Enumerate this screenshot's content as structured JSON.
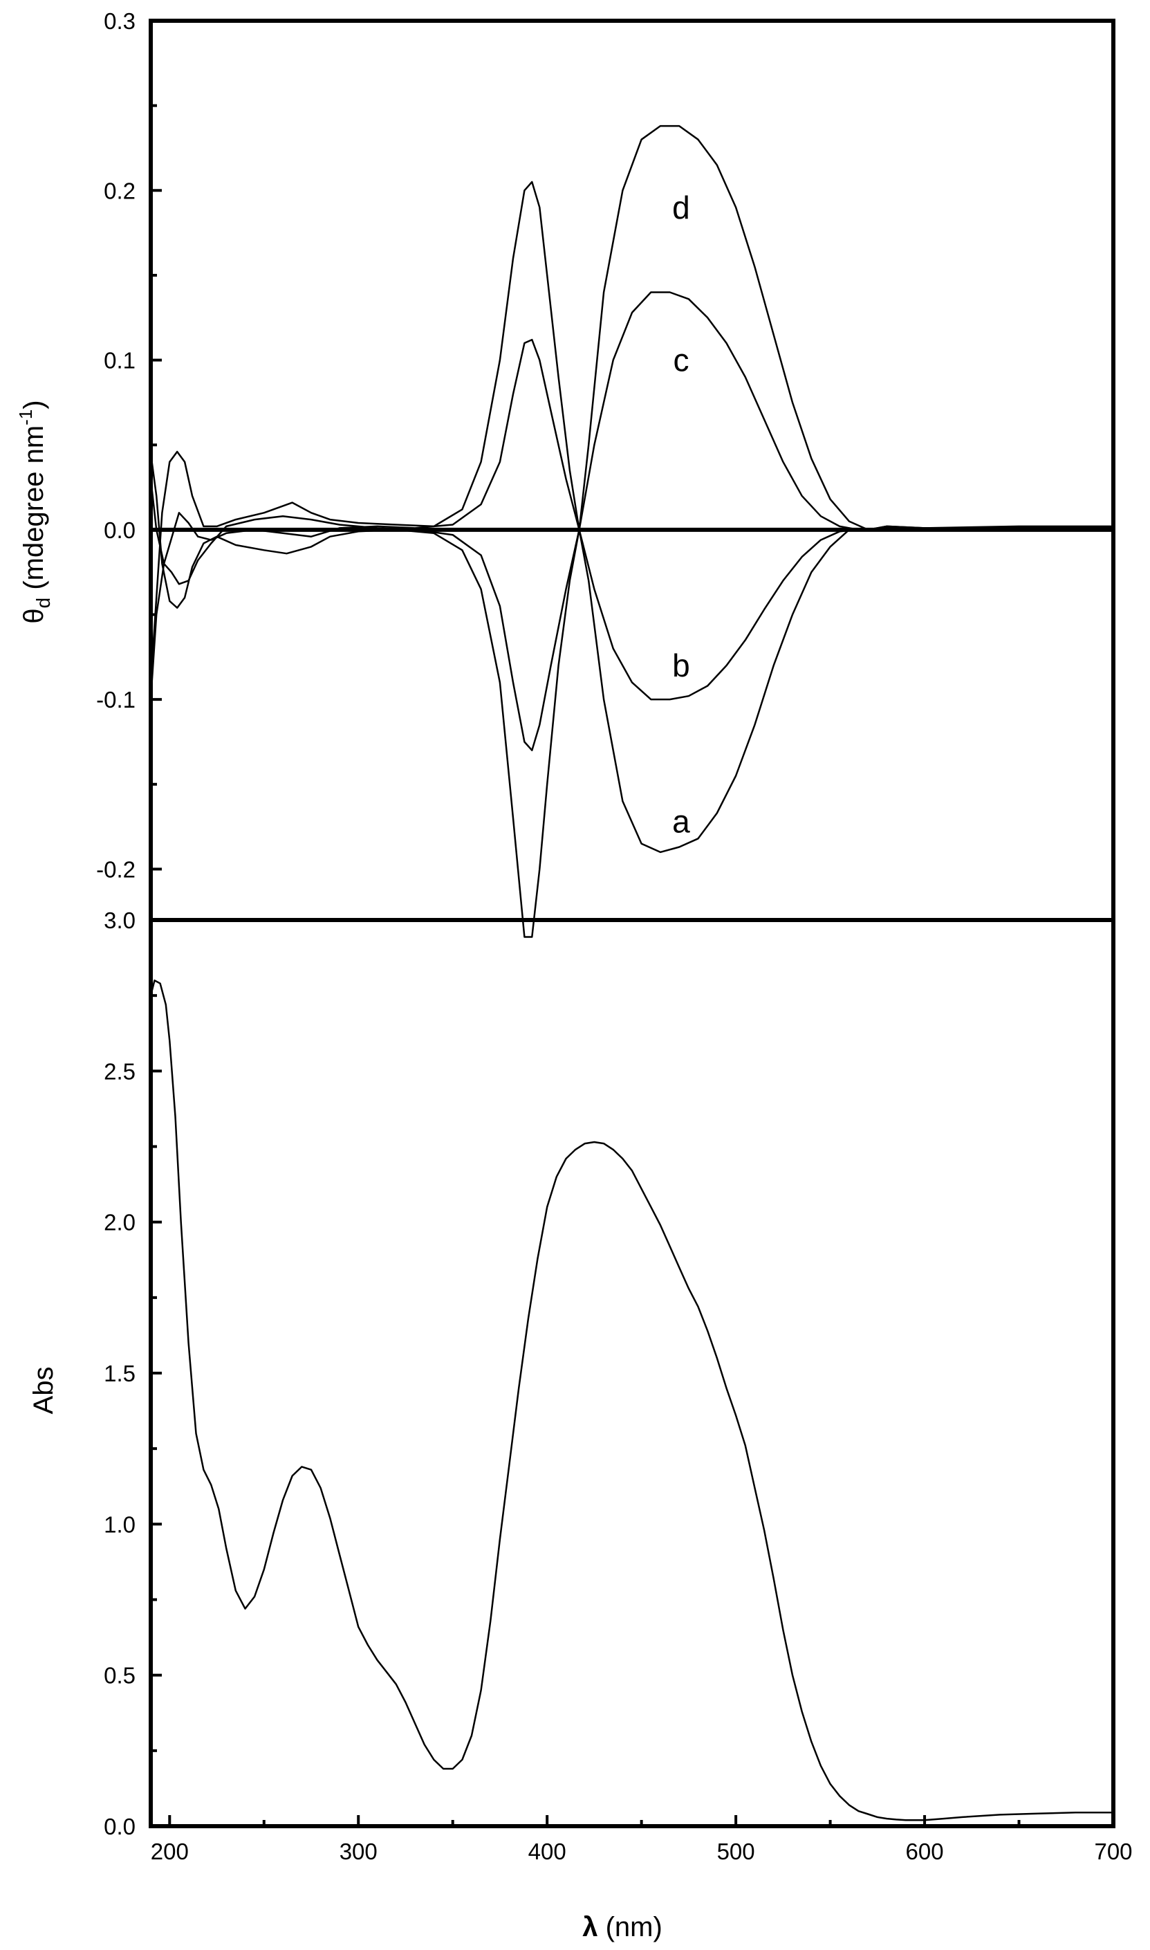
{
  "chart_data": [
    {
      "type": "line",
      "ylabel": "θd (mdegree nm-1)",
      "ylabel_parts": {
        "symbol": "θ",
        "subscript": "d",
        "units_open": " (mdegree nm",
        "superscript": "-1",
        "units_close": ")"
      },
      "xlim": [
        190,
        700
      ],
      "ylim": [
        -0.23,
        0.3
      ],
      "yticks": [
        -0.2,
        -0.1,
        0.0,
        0.1,
        0.2,
        0.3
      ],
      "ytick_labels": [
        "-0.2",
        "-0.1",
        "0.0",
        "0.1",
        "0.2",
        "0.3"
      ],
      "zero_line": true,
      "series": [
        {
          "name": "a",
          "label_at": [
            471,
            -0.172
          ],
          "x": [
            190,
            193,
            196,
            200,
            204,
            208,
            212,
            218,
            225,
            235,
            250,
            262,
            275,
            285,
            300,
            320,
            340,
            355,
            365,
            375,
            382,
            388,
            392,
            396,
            400,
            406,
            412,
            417,
            422,
            430,
            440,
            450,
            460,
            470,
            480,
            490,
            500,
            510,
            520,
            530,
            540,
            550,
            560,
            570,
            580,
            600,
            650,
            700
          ],
          "y": [
            0.045,
            0.02,
            -0.02,
            -0.042,
            -0.046,
            -0.04,
            -0.022,
            -0.008,
            -0.004,
            -0.009,
            -0.012,
            -0.014,
            -0.01,
            -0.004,
            -0.001,
            0.0,
            -0.002,
            -0.012,
            -0.035,
            -0.09,
            -0.17,
            -0.24,
            -0.24,
            -0.2,
            -0.15,
            -0.08,
            -0.03,
            0.0,
            -0.03,
            -0.1,
            -0.16,
            -0.185,
            -0.19,
            -0.187,
            -0.182,
            -0.167,
            -0.145,
            -0.115,
            -0.08,
            -0.05,
            -0.025,
            -0.01,
            0.0,
            0.0,
            0.002,
            0.001,
            0.001,
            0.001
          ]
        },
        {
          "name": "b",
          "label_at": [
            471,
            -0.08
          ],
          "x": [
            190,
            193,
            197,
            201,
            205,
            210,
            215,
            222,
            230,
            245,
            260,
            275,
            290,
            310,
            330,
            350,
            365,
            375,
            382,
            388,
            392,
            396,
            402,
            410,
            417,
            425,
            435,
            445,
            455,
            465,
            475,
            485,
            495,
            505,
            515,
            525,
            535,
            545,
            555,
            565,
            580,
            620,
            700
          ],
          "y": [
            -0.1,
            -0.05,
            -0.02,
            -0.025,
            -0.032,
            -0.03,
            -0.018,
            -0.008,
            0.002,
            0.006,
            0.008,
            0.006,
            0.003,
            0.001,
            0.0,
            -0.003,
            -0.015,
            -0.045,
            -0.09,
            -0.125,
            -0.13,
            -0.115,
            -0.08,
            -0.035,
            0.0,
            -0.035,
            -0.07,
            -0.09,
            -0.1,
            -0.1,
            -0.098,
            -0.092,
            -0.08,
            -0.065,
            -0.047,
            -0.03,
            -0.016,
            -0.006,
            -0.001,
            0.0,
            0.001,
            0.001,
            0.001
          ]
        },
        {
          "name": "c",
          "label_at": [
            471,
            0.1
          ],
          "x": [
            190,
            193,
            197,
            201,
            205,
            210,
            215,
            222,
            230,
            245,
            260,
            275,
            290,
            310,
            330,
            350,
            365,
            375,
            382,
            388,
            392,
            396,
            402,
            410,
            417,
            425,
            435,
            445,
            455,
            465,
            475,
            485,
            495,
            505,
            515,
            525,
            535,
            545,
            555,
            565,
            580,
            620,
            700
          ],
          "y": [
            0.03,
            0.0,
            -0.02,
            -0.005,
            0.01,
            0.004,
            -0.004,
            -0.006,
            -0.002,
            0.0,
            -0.002,
            -0.004,
            0.001,
            0.002,
            0.001,
            0.003,
            0.015,
            0.04,
            0.08,
            0.11,
            0.112,
            0.1,
            0.07,
            0.03,
            0.0,
            0.05,
            0.1,
            0.128,
            0.14,
            0.14,
            0.136,
            0.125,
            0.11,
            0.09,
            0.065,
            0.04,
            0.02,
            0.008,
            0.002,
            0.0,
            0.001,
            0.001,
            0.001
          ]
        },
        {
          "name": "d",
          "label_at": [
            471,
            0.19
          ],
          "x": [
            190,
            193,
            196,
            200,
            204,
            208,
            212,
            218,
            225,
            235,
            250,
            265,
            275,
            285,
            300,
            320,
            340,
            355,
            365,
            375,
            382,
            388,
            392,
            396,
            400,
            406,
            412,
            417,
            422,
            430,
            440,
            450,
            460,
            470,
            480,
            490,
            500,
            510,
            520,
            530,
            540,
            550,
            560,
            570,
            580,
            600,
            650,
            700
          ],
          "y": [
            -0.09,
            -0.04,
            0.01,
            0.04,
            0.046,
            0.04,
            0.02,
            0.002,
            0.002,
            0.006,
            0.01,
            0.016,
            0.01,
            0.006,
            0.004,
            0.003,
            0.002,
            0.012,
            0.04,
            0.1,
            0.16,
            0.2,
            0.205,
            0.19,
            0.15,
            0.09,
            0.035,
            0.0,
            0.05,
            0.14,
            0.2,
            0.23,
            0.238,
            0.238,
            0.23,
            0.215,
            0.19,
            0.155,
            0.115,
            0.075,
            0.042,
            0.018,
            0.005,
            0.0,
            0.002,
            0.001,
            0.002,
            0.002
          ]
        }
      ]
    },
    {
      "type": "line",
      "xlabel": "λ (nm)",
      "xlabel_parts": {
        "symbol": "λ",
        "rest": " (nm)"
      },
      "ylabel": "Abs",
      "xlim": [
        190,
        700
      ],
      "ylim": [
        0.0,
        3.0
      ],
      "xticks": [
        200,
        300,
        400,
        500,
        600,
        700
      ],
      "xtick_labels": [
        "200",
        "300",
        "400",
        "500",
        "600",
        "700"
      ],
      "yticks": [
        0.0,
        0.5,
        1.0,
        1.5,
        2.0,
        2.5,
        3.0
      ],
      "ytick_labels": [
        "0.0",
        "0.5",
        "1.0",
        "1.5",
        "2.0",
        "2.5",
        "3.0"
      ],
      "series": [
        {
          "x": [
            190,
            192,
            195,
            198,
            200,
            203,
            206,
            210,
            214,
            218,
            222,
            226,
            230,
            235,
            240,
            245,
            250,
            255,
            260,
            265,
            270,
            275,
            280,
            285,
            290,
            295,
            300,
            305,
            310,
            315,
            320,
            325,
            330,
            335,
            340,
            345,
            350,
            355,
            360,
            365,
            370,
            375,
            380,
            385,
            390,
            395,
            400,
            405,
            410,
            415,
            420,
            425,
            430,
            435,
            440,
            445,
            450,
            455,
            460,
            465,
            470,
            475,
            480,
            485,
            490,
            495,
            500,
            505,
            510,
            515,
            520,
            525,
            530,
            535,
            540,
            545,
            550,
            555,
            560,
            565,
            570,
            575,
            580,
            585,
            590,
            595,
            600,
            610,
            620,
            640,
            660,
            680,
            700
          ],
          "y": [
            2.75,
            2.8,
            2.79,
            2.72,
            2.6,
            2.35,
            2.0,
            1.6,
            1.3,
            1.18,
            1.13,
            1.05,
            0.92,
            0.78,
            0.72,
            0.76,
            0.85,
            0.97,
            1.08,
            1.16,
            1.19,
            1.18,
            1.12,
            1.02,
            0.9,
            0.78,
            0.66,
            0.6,
            0.55,
            0.51,
            0.47,
            0.41,
            0.34,
            0.27,
            0.22,
            0.19,
            0.19,
            0.22,
            0.3,
            0.45,
            0.68,
            0.95,
            1.2,
            1.45,
            1.68,
            1.88,
            2.05,
            2.15,
            2.21,
            2.24,
            2.26,
            2.265,
            2.26,
            2.24,
            2.21,
            2.17,
            2.11,
            2.05,
            1.99,
            1.92,
            1.85,
            1.78,
            1.72,
            1.64,
            1.55,
            1.45,
            1.36,
            1.26,
            1.12,
            0.98,
            0.82,
            0.65,
            0.5,
            0.38,
            0.28,
            0.2,
            0.14,
            0.1,
            0.07,
            0.05,
            0.04,
            0.03,
            0.025,
            0.022,
            0.02,
            0.02,
            0.02,
            0.025,
            0.03,
            0.038,
            0.042,
            0.045,
            0.045
          ]
        }
      ]
    }
  ]
}
